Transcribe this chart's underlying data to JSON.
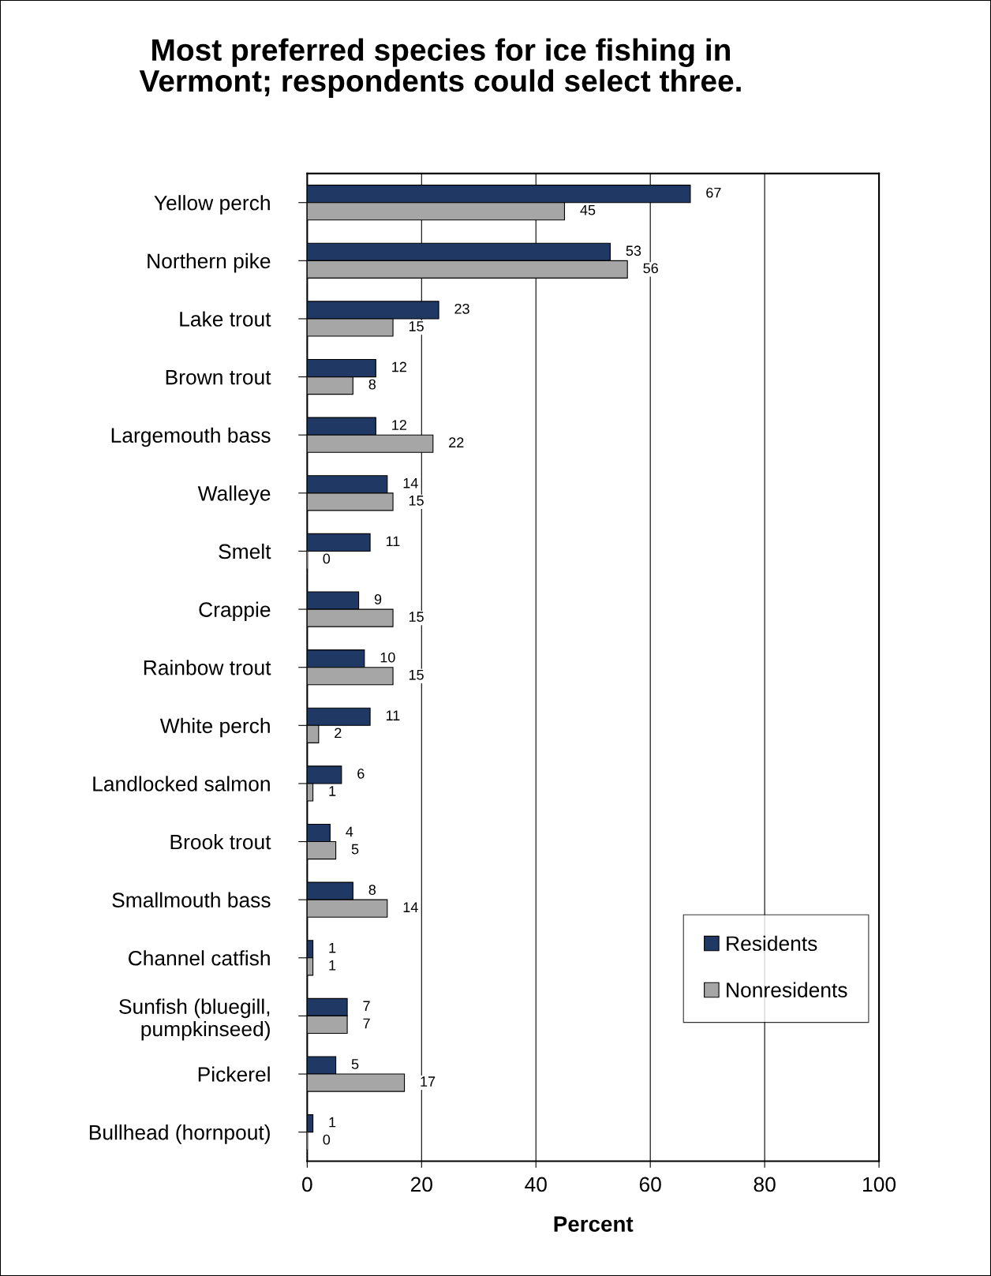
{
  "chart_data": {
    "type": "bar",
    "orientation": "horizontal",
    "title": "Most preferred species for ice fishing in\nVermont; respondents could select three.",
    "xlabel": "Percent",
    "categories": [
      "Yellow perch",
      "Northern pike",
      "Lake trout",
      "Brown trout",
      "Largemouth bass",
      "Walleye",
      "Smelt",
      "Crappie",
      "Rainbow trout",
      "White perch",
      "Landlocked salmon",
      "Brook trout",
      "Smallmouth bass",
      "Channel catfish",
      "Sunfish (bluegill,\npumpkinseed)",
      "Pickerel",
      "Bullhead (hornpout)"
    ],
    "series": [
      {
        "name": "Residents",
        "color": "#1f3864",
        "values": [
          67,
          53,
          23,
          12,
          12,
          14,
          11,
          9,
          10,
          11,
          6,
          4,
          8,
          1,
          7,
          5,
          1
        ]
      },
      {
        "name": "Nonresidents",
        "color": "#a6a6a6",
        "values": [
          45,
          56,
          15,
          8,
          22,
          15,
          0,
          15,
          15,
          2,
          1,
          5,
          14,
          1,
          7,
          17,
          0
        ]
      }
    ],
    "xlim": [
      0,
      100
    ],
    "xticks": [
      0,
      20,
      40,
      60,
      80,
      100
    ],
    "grid": "x",
    "legend": "bottom right",
    "data_labels": true
  }
}
